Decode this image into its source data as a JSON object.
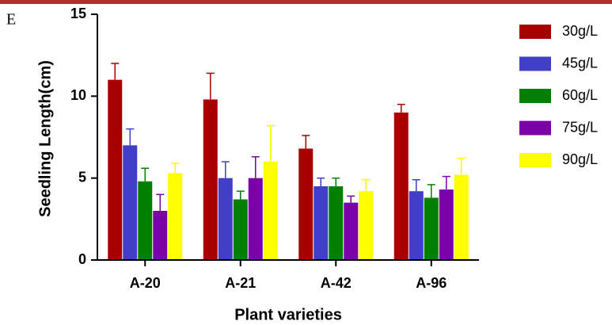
{
  "panel_label": "E",
  "chart_data": {
    "type": "bar",
    "x_label": "Plant varieties",
    "y_label": "Seedling Length(cm)",
    "categories": [
      "A-20",
      "A-21",
      "A-42",
      "A-96"
    ],
    "ylim": [
      0,
      15
    ],
    "yticks": [
      0,
      5,
      10,
      15
    ],
    "series": [
      {
        "name": "30g/L",
        "color": "#a80000",
        "values": [
          11.0,
          9.8,
          6.8,
          9.0
        ],
        "errors": [
          1.0,
          1.6,
          0.8,
          0.5
        ]
      },
      {
        "name": "45g/L",
        "color": "#3f3fc8",
        "values": [
          7.0,
          5.0,
          4.5,
          4.2
        ],
        "errors": [
          1.0,
          1.0,
          0.5,
          0.7
        ]
      },
      {
        "name": "60g/L",
        "color": "#008000",
        "values": [
          4.8,
          3.7,
          4.5,
          3.8
        ],
        "errors": [
          0.8,
          0.5,
          0.5,
          0.8
        ]
      },
      {
        "name": "75g/L",
        "color": "#7a00a8",
        "values": [
          3.0,
          5.0,
          3.5,
          4.3
        ],
        "errors": [
          1.0,
          1.3,
          0.4,
          0.8
        ]
      },
      {
        "name": "90g/L",
        "color": "#ffff00",
        "values": [
          5.3,
          6.0,
          4.2,
          5.2
        ],
        "errors": [
          0.6,
          2.2,
          0.7,
          1.0
        ]
      }
    ]
  }
}
